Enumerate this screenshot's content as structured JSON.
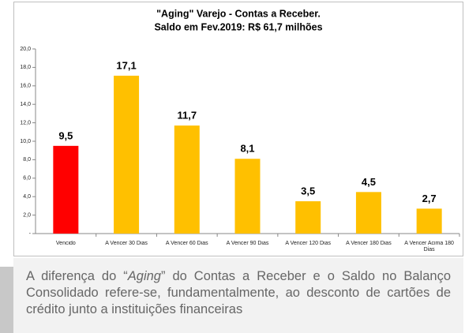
{
  "chart_data": {
    "type": "bar",
    "title": "\"Aging\" Varejo - Contas a Receber.",
    "subtitle": "Saldo em Fev.2019: R$ 61,7 milhões",
    "categories": [
      "Vencido",
      "A Vencer 30 Dias",
      "A Vencer 60 Dias",
      "A Vencer 90 Dias",
      "A Vencer 120 Dias",
      "A Vencer 180 Dias",
      "A Vencer Acima 180 Dias"
    ],
    "values": [
      9.5,
      17.1,
      11.7,
      8.1,
      3.5,
      4.5,
      2.7
    ],
    "value_labels": [
      "9,5",
      "17,1",
      "11,7",
      "8,1",
      "3,5",
      "4,5",
      "2,7"
    ],
    "colors": [
      "#ff0000",
      "#ffc000",
      "#ffc000",
      "#ffc000",
      "#ffc000",
      "#ffc000",
      "#ffc000"
    ],
    "ylim": [
      0,
      20
    ],
    "yticks": [
      {
        "value": 0,
        "label": "-"
      },
      {
        "value": 2,
        "label": "2,0"
      },
      {
        "value": 4,
        "label": "4,0"
      },
      {
        "value": 6,
        "label": "6,0"
      },
      {
        "value": 8,
        "label": "8,0"
      },
      {
        "value": 10,
        "label": "10,0"
      },
      {
        "value": 12,
        "label": "12,0"
      },
      {
        "value": 14,
        "label": "14,0"
      },
      {
        "value": 16,
        "label": "16,0"
      },
      {
        "value": 18,
        "label": "18,0"
      },
      {
        "value": 20,
        "label": "20,0"
      }
    ],
    "grid": false
  },
  "caption": [
    "A diferença do “",
    "Aging",
    "” do Contas a Receber e o Saldo no Balanço Consolidado refere-se, fundamentalmente, ao desconto de cartões de crédito junto a instituições financeiras"
  ]
}
